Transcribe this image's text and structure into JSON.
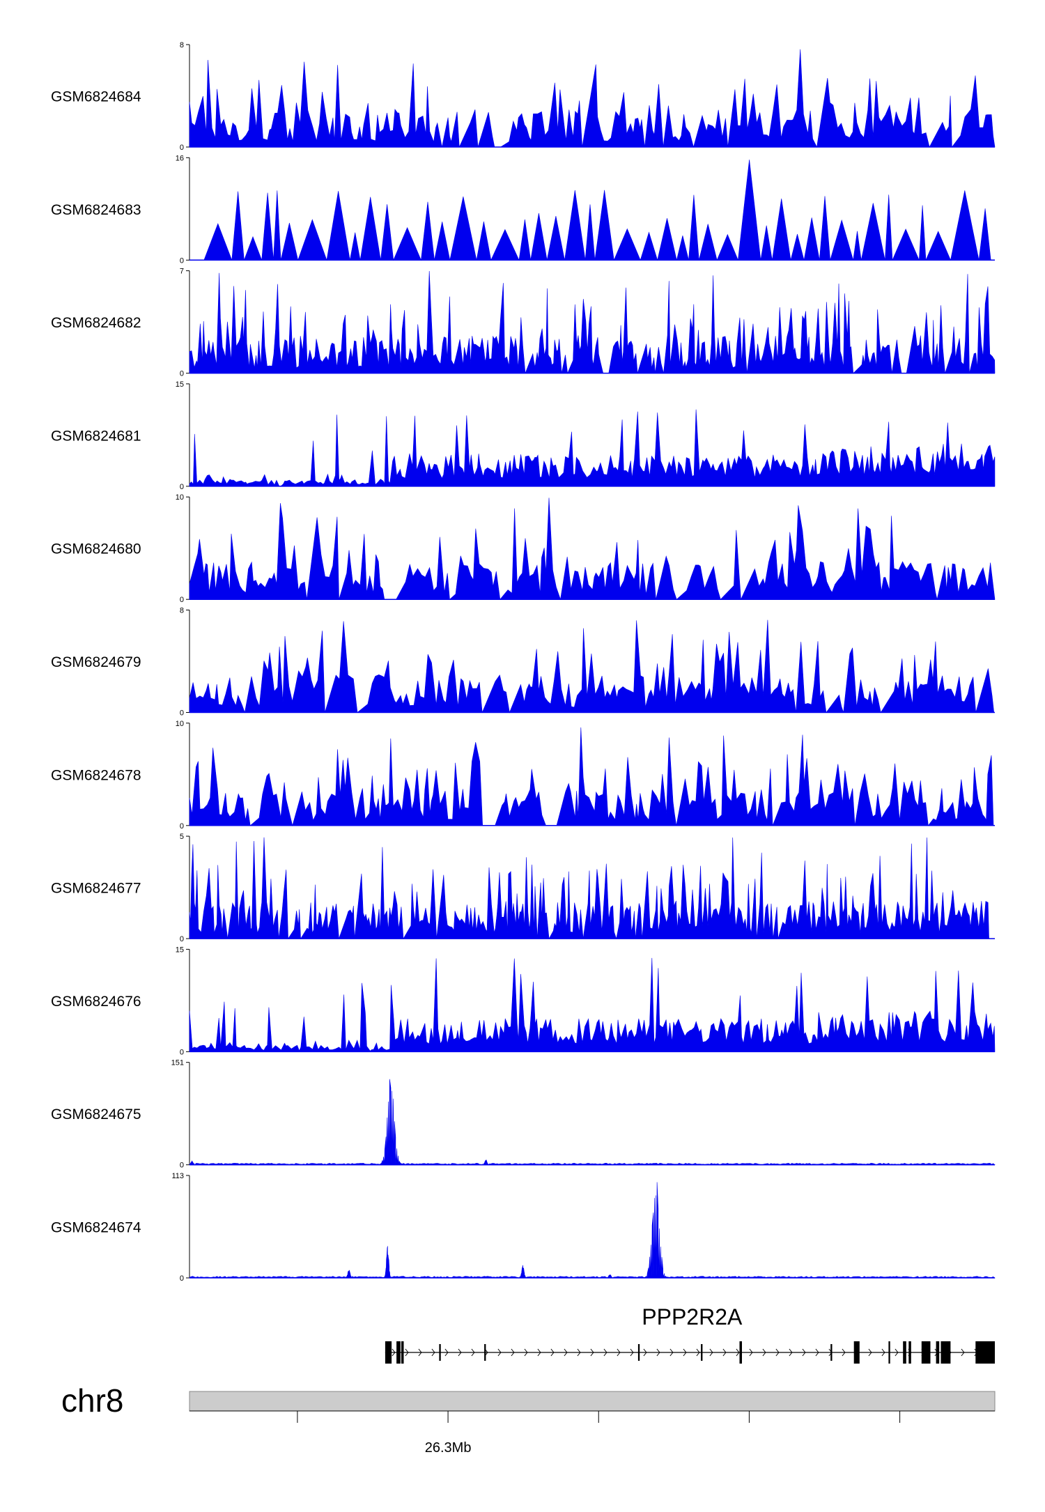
{
  "colors": {
    "signal": "#0000ee",
    "ideogram": "#cccccc",
    "exon": "#000000"
  },
  "chart_data": {
    "type": "area",
    "chromosome": "chr8",
    "axis_tick_label": "26.3Mb",
    "tracks": [
      {
        "name": "GSM6824684",
        "ymax": 8,
        "ymin": 0,
        "pattern": "sparse"
      },
      {
        "name": "GSM6824683",
        "ymax": 16,
        "ymin": 0,
        "pattern": "triangles"
      },
      {
        "name": "GSM6824682",
        "ymax": 7,
        "ymin": 0,
        "pattern": "dense"
      },
      {
        "name": "GSM6824681",
        "ymax": 15,
        "ymin": 0,
        "pattern": "enriched"
      },
      {
        "name": "GSM6824680",
        "ymax": 10,
        "ymin": 0,
        "pattern": "sparse"
      },
      {
        "name": "GSM6824679",
        "ymax": 8,
        "ymin": 0,
        "pattern": "sparse"
      },
      {
        "name": "GSM6824678",
        "ymax": 10,
        "ymin": 0,
        "pattern": "sparse"
      },
      {
        "name": "GSM6824677",
        "ymax": 5,
        "ymin": 0,
        "pattern": "dense"
      },
      {
        "name": "GSM6824676",
        "ymax": 15,
        "ymin": 0,
        "pattern": "enriched"
      },
      {
        "name": "GSM6824675",
        "ymax": 151,
        "ymin": 0,
        "pattern": "peaks",
        "peaks": [
          {
            "x": 0.25,
            "value": 140
          },
          {
            "x": 0.368,
            "value": 8
          },
          {
            "x": 0.003,
            "value": 6
          }
        ]
      },
      {
        "name": "GSM6824674",
        "ymax": 113,
        "ymin": 0,
        "pattern": "peaks",
        "peaks": [
          {
            "x": 0.579,
            "value": 113
          },
          {
            "x": 0.246,
            "value": 36
          },
          {
            "x": 0.198,
            "value": 10
          },
          {
            "x": 0.414,
            "value": 15
          },
          {
            "x": 0.522,
            "value": 4
          }
        ]
      }
    ],
    "gene": {
      "name": "PPP2R2A",
      "strand": "+",
      "start": 0.243,
      "end": 1.0,
      "exons": [
        {
          "x": 0.243,
          "w": 0.008,
          "tall": true
        },
        {
          "x": 0.257,
          "w": 0.005,
          "tall": true
        },
        {
          "x": 0.263,
          "w": 0.003,
          "tall": true
        },
        {
          "x": 0.31,
          "w": 0.002
        },
        {
          "x": 0.366,
          "w": 0.002
        },
        {
          "x": 0.557,
          "w": 0.002
        },
        {
          "x": 0.635,
          "w": 0.002
        },
        {
          "x": 0.683,
          "w": 0.003,
          "tall": true
        },
        {
          "x": 0.796,
          "w": 0.002
        },
        {
          "x": 0.825,
          "w": 0.007,
          "tall": true
        },
        {
          "x": 0.868,
          "w": 0.002,
          "tall": true
        },
        {
          "x": 0.886,
          "w": 0.004,
          "tall": true
        },
        {
          "x": 0.893,
          "w": 0.003,
          "tall": true
        },
        {
          "x": 0.909,
          "w": 0.011,
          "tall": true
        },
        {
          "x": 0.927,
          "w": 0.004,
          "tall": true
        },
        {
          "x": 0.933,
          "w": 0.012,
          "tall": true
        },
        {
          "x": 0.976,
          "w": 0.024,
          "tall": true
        }
      ]
    },
    "axis_ticks": [
      0.134,
      0.321,
      0.508,
      0.695,
      0.882
    ],
    "labeled_tick_index": 1
  }
}
